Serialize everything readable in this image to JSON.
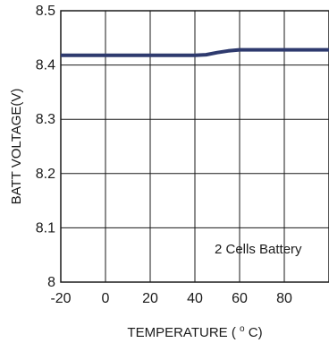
{
  "chart_data": {
    "type": "line",
    "title": "",
    "xlabel": "TEMPERATURE",
    "xlabel_unit_prefix": "(",
    "xlabel_unit_sup": "o",
    "xlabel_unit_suffix": "C)",
    "ylabel": "BATT  VOLTAGE(V)",
    "xlim": [
      -20,
      100
    ],
    "ylim": [
      8.0,
      8.5
    ],
    "x_ticks": [
      -20,
      0,
      20,
      40,
      60,
      80
    ],
    "x_tick_labels": [
      "-20",
      "0",
      "20",
      "40",
      "60",
      "80"
    ],
    "y_ticks": [
      8.0,
      8.1,
      8.2,
      8.3,
      8.4,
      8.5
    ],
    "y_tick_labels": [
      "8",
      "8.1",
      "8.2",
      "8.3",
      "8.4",
      "8.5"
    ],
    "grid": true,
    "annotation": "2 Cells Battery",
    "series_color": "#2e3a6e",
    "series": [
      {
        "x": [
          -20,
          0,
          20,
          40,
          45,
          50,
          55,
          60,
          80,
          100
        ],
        "values": [
          8.418,
          8.418,
          8.418,
          8.418,
          8.419,
          8.423,
          8.426,
          8.428,
          8.428,
          8.428
        ]
      }
    ]
  }
}
